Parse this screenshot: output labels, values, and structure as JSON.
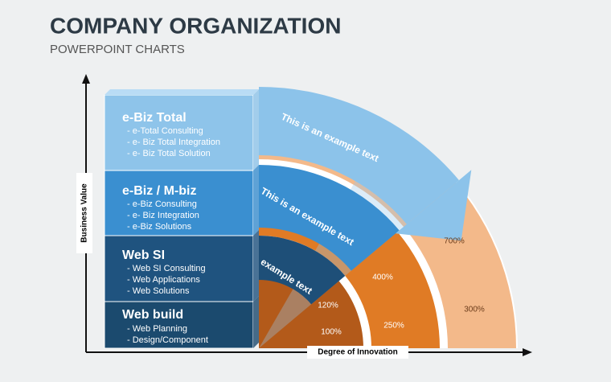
{
  "header": {
    "title": "COMPANY ORGANIZATION",
    "subtitle": "POWERPOINT CHARTS"
  },
  "axes": {
    "y_label": "Business Value",
    "x_label": "Degree of Innovation"
  },
  "levels": [
    {
      "title": "e-Biz Total",
      "items": [
        "- e-Total Consulting",
        "- e- Biz Total Integration",
        "- e- Biz Total Solution"
      ]
    },
    {
      "title": "e-Biz / M-biz",
      "items": [
        "- e-Biz Consulting",
        "- e- Biz Integration",
        "- e-Biz Solutions"
      ]
    },
    {
      "title": "Web SI",
      "items": [
        "- Web SI Consulting",
        "- Web Applications",
        "- Web Solutions"
      ]
    },
    {
      "title": "Web build",
      "items": [
        "- Web Planning",
        "- Design/Component"
      ]
    }
  ],
  "arc_texts": [
    "This is an example text",
    "This is an example text",
    "example text"
  ],
  "percentages": [
    "700%",
    "300%",
    "400%",
    "250%",
    "120%",
    "100%"
  ]
}
